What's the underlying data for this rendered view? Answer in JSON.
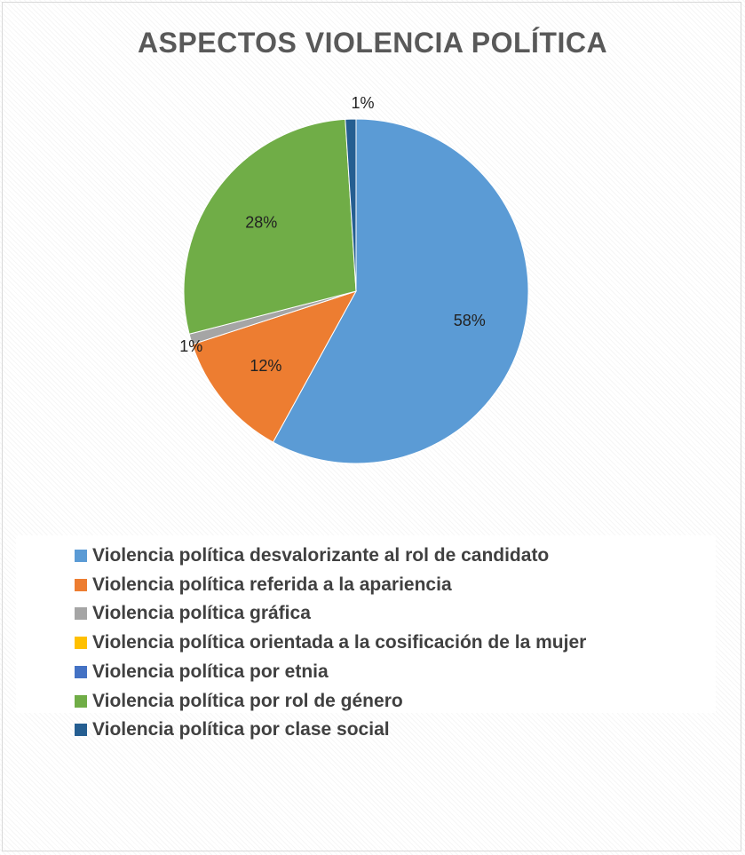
{
  "chart_data": {
    "type": "pie",
    "title": "ASPECTOS VIOLENCIA POLÍTICA",
    "legend_position": "bottom",
    "slices": [
      {
        "name": "Violencia política desvalorizante al rol de candidato",
        "value": 58,
        "label": "58%",
        "color": "#5B9BD5"
      },
      {
        "name": "Violencia política referida a la apariencia",
        "value": 12,
        "label": "12%",
        "color": "#ED7D31"
      },
      {
        "name": "Violencia política gráfica",
        "value": 1,
        "label": "1%",
        "color": "#A5A5A5"
      },
      {
        "name": "Violencia política orientada a la cosificación de la mujer",
        "value": 0,
        "label": "",
        "color": "#FFC000"
      },
      {
        "name": "Violencia política por etnia",
        "value": 0,
        "label": "",
        "color": "#4472C4"
      },
      {
        "name": "Violencia política por rol de género",
        "value": 28,
        "label": "28%",
        "color": "#70AD47"
      },
      {
        "name": "Violencia política por clase social",
        "value": 1,
        "label": "1%",
        "color": "#255E91"
      }
    ]
  }
}
